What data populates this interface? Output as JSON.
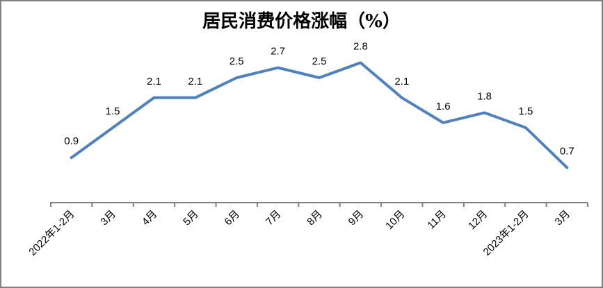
{
  "figure": {
    "background": "#FFFFFF",
    "border_color": "#808080"
  },
  "chart_data": {
    "type": "line",
    "title": "居民消费价格涨幅（%）",
    "categories": [
      "2022年1-2月",
      "3月",
      "4月",
      "5月",
      "6月",
      "7月",
      "8月",
      "9月",
      "10月",
      "11月",
      "12月",
      "2023年1-2月",
      "3月"
    ],
    "values": [
      0.9,
      1.5,
      2.1,
      2.1,
      2.5,
      2.7,
      2.5,
      2.8,
      2.1,
      1.6,
      1.8,
      1.5,
      0.7
    ],
    "data_labels": [
      "0.9",
      "1.5",
      "2.1",
      "2.1",
      "2.5",
      "2.7",
      "2.5",
      "2.8",
      "2.1",
      "1.6",
      "1.8",
      "1.5",
      "0.7"
    ],
    "xlabel": "",
    "ylabel": "",
    "ylim": [
      0,
      3
    ],
    "grid": false,
    "legend": "none",
    "y_axis_visible": false,
    "line_color": "#4F81BD",
    "axis_color": "#808080",
    "label_color": "#000000",
    "title_color": "#000000"
  }
}
